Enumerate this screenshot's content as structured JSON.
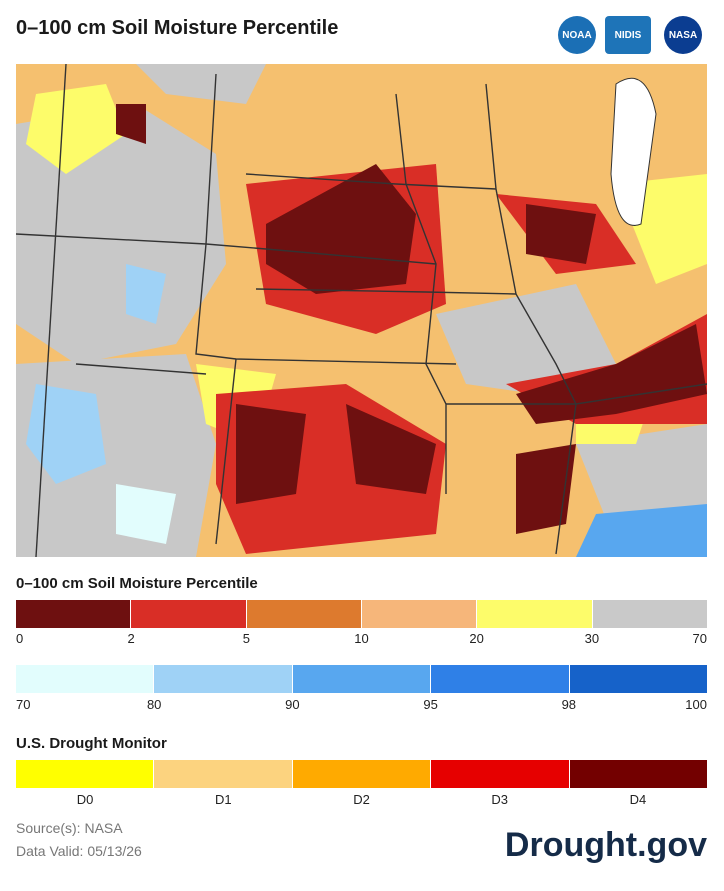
{
  "header": {
    "title": "0–100 cm Soil Moisture Percentile",
    "logos": [
      "NOAA",
      "NIDIS",
      "NASA"
    ]
  },
  "legend": {
    "percentile": {
      "title": "0–100 cm Soil Moisture Percentile",
      "dry": {
        "ticks": [
          "0",
          "2",
          "5",
          "10",
          "20",
          "30",
          "70"
        ],
        "colors": [
          "#6e1010",
          "#d92e26",
          "#dd7a2e",
          "#f6b67a",
          "#fdfc6a",
          "#c9c9c9"
        ]
      },
      "wet": {
        "ticks": [
          "70",
          "80",
          "90",
          "95",
          "98",
          "100"
        ],
        "colors": [
          "#e2fdfd",
          "#9fd2f6",
          "#58a7ef",
          "#2f80e7",
          "#1662c9"
        ]
      }
    },
    "drought_monitor": {
      "title": "U.S. Drought Monitor",
      "categories": [
        "D0",
        "D1",
        "D2",
        "D3",
        "D4"
      ],
      "colors": [
        "#ffff00",
        "#fcd37f",
        "#ffaa00",
        "#e60000",
        "#730000"
      ]
    }
  },
  "footer": {
    "source": "Source(s): NASA",
    "valid": "Data Valid: 05/13/26",
    "brand": "Drought.gov"
  }
}
